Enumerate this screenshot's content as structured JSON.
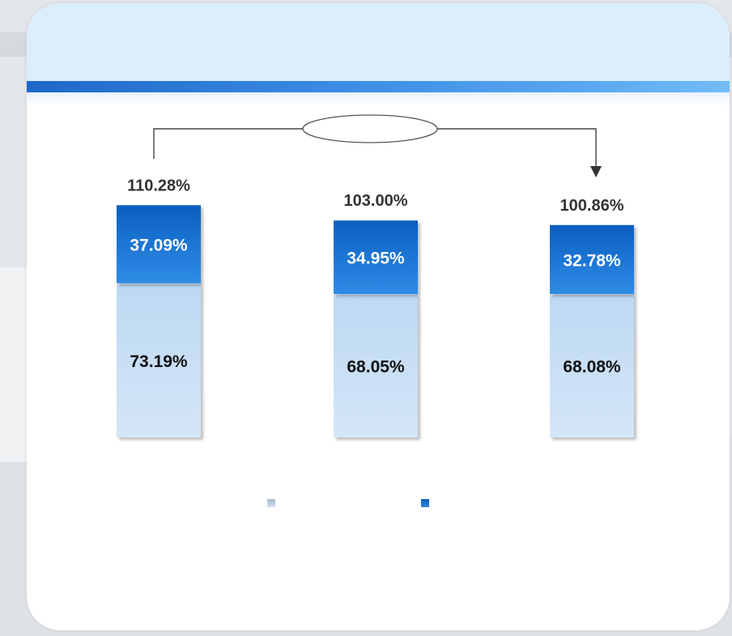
{
  "chart_data": {
    "type": "bar",
    "stacked": true,
    "categories": [
      "",
      "",
      ""
    ],
    "totals": [
      "110.28%",
      "103.00%",
      "100.86%"
    ],
    "series": [
      {
        "values": [
          73.19,
          68.05,
          68.08
        ],
        "labels": [
          "73.19%",
          "68.05%",
          "68.08%"
        ],
        "color": "#c6dff4",
        "text_color": "#111111"
      },
      {
        "values": [
          37.09,
          34.95,
          32.78
        ],
        "labels": [
          "37.09%",
          "34.95%",
          "32.78%"
        ],
        "color": "#1a73d0",
        "text_color": "#ffffff"
      }
    ],
    "legend": {
      "position": "bottom",
      "swatch_colors": [
        "#b9c9da",
        "#1c6fcc"
      ]
    },
    "annotation": {
      "type": "bracket-arrow",
      "from": 0,
      "to": 2,
      "label": ""
    },
    "grid": false
  },
  "colors": {
    "header_bg": "#dbeefc",
    "accent": "#1d67c9",
    "total_label": "#333333"
  }
}
